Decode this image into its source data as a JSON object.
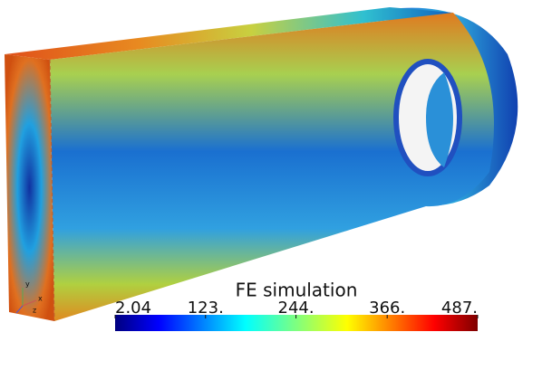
{
  "colorbar": {
    "title": "FE simulation",
    "range": [
      2.04,
      487
    ],
    "ticks": [
      2.04,
      {
        "value": 123,
        "label": "123."
      },
      {
        "value": 244,
        "label": "244."
      },
      {
        "value": 366,
        "label": "366."
      },
      {
        "value": 487,
        "label": "487."
      }
    ]
  },
  "axes": {
    "x": "x",
    "y": "y",
    "z": "z"
  }
}
